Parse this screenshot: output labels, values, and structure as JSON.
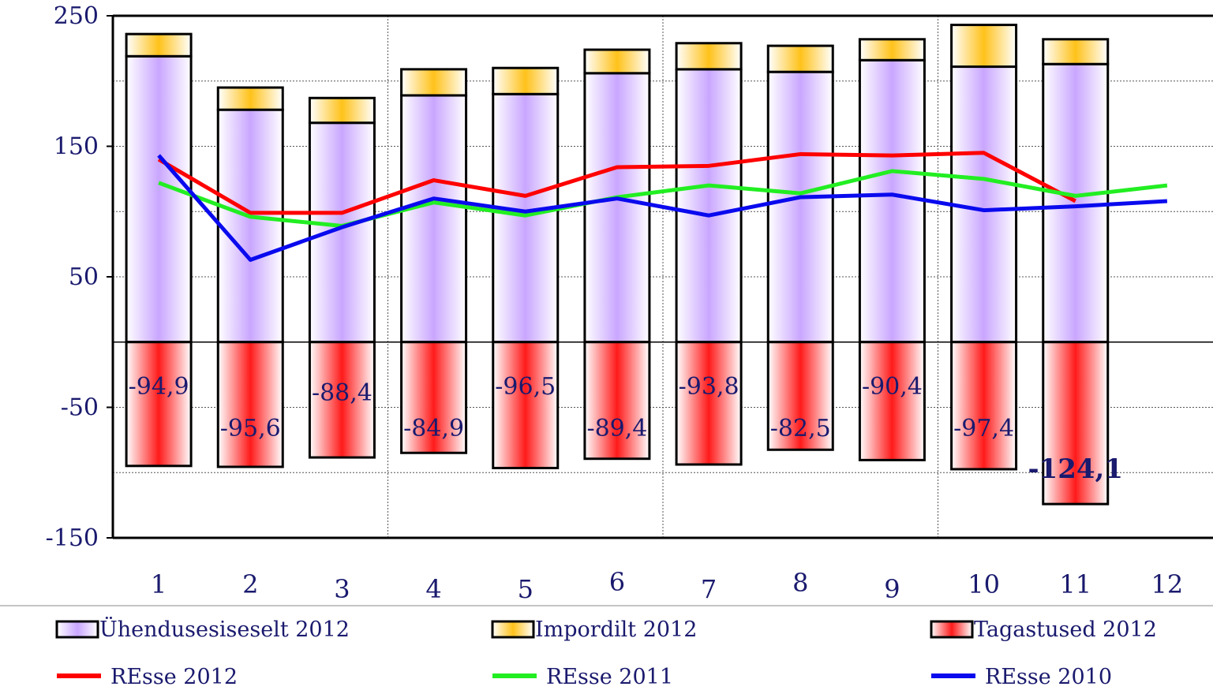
{
  "chart_data": {
    "type": "bar",
    "stacked": true,
    "categories": [
      "1",
      "2",
      "3",
      "4",
      "5",
      "6",
      "7",
      "8",
      "9",
      "10",
      "11",
      "12"
    ],
    "ylim": [
      -150,
      250
    ],
    "yticks": [
      "250",
      "150",
      "50",
      "-50",
      "-150"
    ],
    "grid": true,
    "legend_position": "bottom",
    "bar_series": [
      {
        "name": "Ühendusesiseselt 2012",
        "color": "#c9a6ff",
        "values": [
          219,
          178,
          168,
          189,
          190,
          206,
          209,
          207,
          216,
          211,
          213,
          null
        ]
      },
      {
        "name": "Impordilt 2012",
        "color": "#ffc21a",
        "values": [
          17,
          17,
          19,
          20,
          20,
          18,
          20,
          20,
          16,
          32,
          19,
          null
        ]
      },
      {
        "name": "Tagastused 2012",
        "color": "#ff1a1a",
        "values": [
          -94.9,
          -95.6,
          -88.4,
          -84.9,
          -96.5,
          -89.4,
          -93.8,
          -82.5,
          -90.4,
          -97.4,
          -124.1,
          null
        ],
        "labels": [
          "-94,9",
          "-95,6",
          "-88,4",
          "-84,9",
          "-96,5",
          "-89,4",
          "-93,8",
          "-82,5",
          "-90,4",
          "-97,4",
          "-124,1",
          ""
        ]
      }
    ],
    "line_series": [
      {
        "name": "REsse 2012",
        "color": "#ff0000",
        "values": [
          140,
          99,
          99,
          124,
          112,
          134,
          135,
          144,
          143,
          145,
          108,
          null
        ]
      },
      {
        "name": "REsse 2011",
        "color": "#22ee22",
        "values": [
          122,
          96,
          89,
          107,
          97,
          111,
          120,
          114,
          131,
          125,
          112,
          120
        ]
      },
      {
        "name": "REsse 2010",
        "color": "#0a0aee",
        "values": [
          143,
          63,
          88,
          110,
          100,
          110,
          97,
          111,
          113,
          101,
          104,
          108
        ]
      }
    ]
  }
}
